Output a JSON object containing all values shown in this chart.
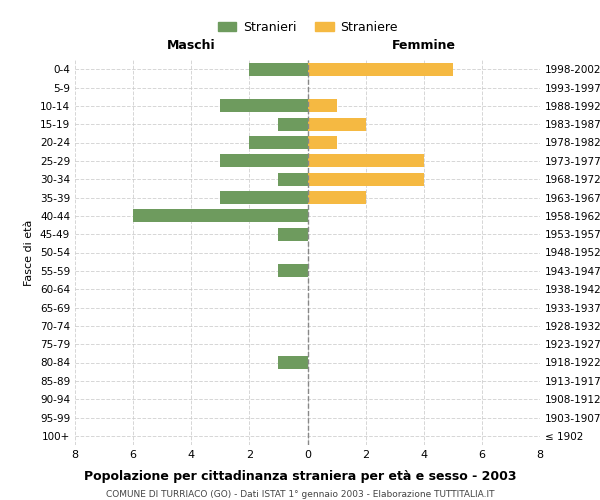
{
  "age_groups": [
    "100+",
    "95-99",
    "90-94",
    "85-89",
    "80-84",
    "75-79",
    "70-74",
    "65-69",
    "60-64",
    "55-59",
    "50-54",
    "45-49",
    "40-44",
    "35-39",
    "30-34",
    "25-29",
    "20-24",
    "15-19",
    "10-14",
    "5-9",
    "0-4"
  ],
  "birth_years": [
    "≤ 1902",
    "1903-1907",
    "1908-1912",
    "1913-1917",
    "1918-1922",
    "1923-1927",
    "1928-1932",
    "1933-1937",
    "1938-1942",
    "1943-1947",
    "1948-1952",
    "1953-1957",
    "1958-1962",
    "1963-1967",
    "1968-1972",
    "1973-1977",
    "1978-1982",
    "1983-1987",
    "1988-1992",
    "1993-1997",
    "1998-2002"
  ],
  "males": [
    0,
    0,
    0,
    0,
    1,
    0,
    0,
    0,
    0,
    1,
    0,
    1,
    6,
    3,
    1,
    3,
    2,
    1,
    3,
    0,
    2
  ],
  "females": [
    0,
    0,
    0,
    0,
    0,
    0,
    0,
    0,
    0,
    0,
    0,
    0,
    0,
    2,
    4,
    4,
    1,
    2,
    1,
    0,
    5
  ],
  "male_color": "#6e9b5e",
  "female_color": "#f5b942",
  "title": "Popolazione per cittadinanza straniera per età e sesso - 2003",
  "subtitle": "COMUNE DI TURRIACO (GO) - Dati ISTAT 1° gennaio 2003 - Elaborazione TUTTITALIA.IT",
  "xlabel_left": "Maschi",
  "xlabel_right": "Femmine",
  "ylabel_left": "Fasce di età",
  "legend_male": "Stranieri",
  "legend_female": "Straniere",
  "xlim": 8,
  "background_color": "#ffffff",
  "grid_color": "#cccccc"
}
